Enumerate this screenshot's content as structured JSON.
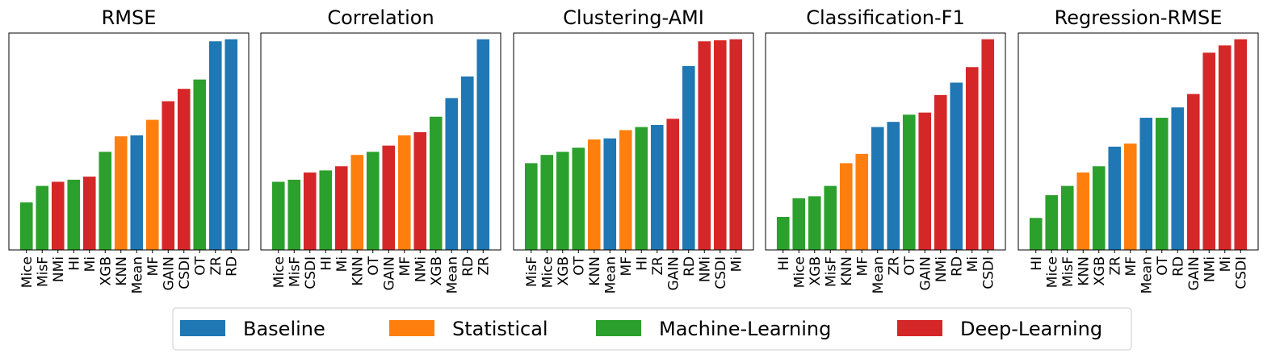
{
  "colors": {
    "Baseline": "#1f77b4",
    "Statistical": "#ff7f0e",
    "Machine-Learning": "#2ca02c",
    "Deep-Learning": "#d62728"
  },
  "legend": {
    "items": [
      "Baseline",
      "Statistical",
      "Machine-Learning",
      "Deep-Learning"
    ]
  },
  "chart_data": [
    {
      "type": "bar",
      "title": "RMSE",
      "categories": [
        "Mice",
        "MisF",
        "NMi",
        "HI",
        "Mi",
        "XGB",
        "KNN",
        "Mean",
        "MF",
        "GAIN",
        "CSDI",
        "OT",
        "ZR",
        "RD"
      ],
      "groups": [
        "Machine-Learning",
        "Machine-Learning",
        "Deep-Learning",
        "Machine-Learning",
        "Deep-Learning",
        "Machine-Learning",
        "Statistical",
        "Baseline",
        "Statistical",
        "Deep-Learning",
        "Deep-Learning",
        "Machine-Learning",
        "Baseline",
        "Baseline"
      ],
      "values": [
        0.23,
        0.31,
        0.33,
        0.34,
        0.355,
        0.475,
        0.55,
        0.555,
        0.63,
        0.72,
        0.78,
        0.825,
        1.01,
        1.02
      ],
      "ylim": [
        0,
        1.05
      ]
    },
    {
      "type": "bar",
      "title": "Correlation",
      "categories": [
        "Mice",
        "MisF",
        "CSDI",
        "HI",
        "Mi",
        "KNN",
        "OT",
        "GAIN",
        "MF",
        "NMi",
        "XGB",
        "Mean",
        "RD",
        "ZR"
      ],
      "groups": [
        "Machine-Learning",
        "Machine-Learning",
        "Deep-Learning",
        "Machine-Learning",
        "Deep-Learning",
        "Statistical",
        "Machine-Learning",
        "Deep-Learning",
        "Statistical",
        "Deep-Learning",
        "Machine-Learning",
        "Baseline",
        "Baseline",
        "Baseline"
      ],
      "values": [
        0.33,
        0.34,
        0.375,
        0.385,
        0.405,
        0.46,
        0.475,
        0.505,
        0.555,
        0.57,
        0.645,
        0.735,
        0.84,
        1.02
      ],
      "ylim": [
        0,
        1.05
      ]
    },
    {
      "type": "bar",
      "title": "Clustering-AMI",
      "categories": [
        "MisF",
        "Mice",
        "XGB",
        "OT",
        "KNN",
        "Mean",
        "MF",
        "HI",
        "ZR",
        "GAIN",
        "RD",
        "NMi",
        "CSDI",
        "Mi"
      ],
      "groups": [
        "Machine-Learning",
        "Machine-Learning",
        "Machine-Learning",
        "Machine-Learning",
        "Statistical",
        "Baseline",
        "Statistical",
        "Machine-Learning",
        "Baseline",
        "Deep-Learning",
        "Baseline",
        "Deep-Learning",
        "Deep-Learning",
        "Deep-Learning"
      ],
      "values": [
        0.42,
        0.46,
        0.475,
        0.495,
        0.535,
        0.54,
        0.58,
        0.595,
        0.605,
        0.635,
        0.89,
        1.01,
        1.015,
        1.02
      ],
      "ylim": [
        0,
        1.05
      ]
    },
    {
      "type": "bar",
      "title": "Classification-F1",
      "categories": [
        "HI",
        "Mice",
        "XGB",
        "MisF",
        "KNN",
        "MF",
        "Mean",
        "ZR",
        "OT",
        "GAIN",
        "NMi",
        "RD",
        "Mi",
        "CSDI"
      ],
      "groups": [
        "Machine-Learning",
        "Machine-Learning",
        "Machine-Learning",
        "Machine-Learning",
        "Statistical",
        "Statistical",
        "Baseline",
        "Baseline",
        "Machine-Learning",
        "Deep-Learning",
        "Deep-Learning",
        "Baseline",
        "Deep-Learning",
        "Deep-Learning"
      ],
      "values": [
        0.16,
        0.25,
        0.26,
        0.31,
        0.42,
        0.465,
        0.595,
        0.62,
        0.655,
        0.665,
        0.75,
        0.81,
        0.885,
        1.02
      ],
      "ylim": [
        0,
        1.05
      ]
    },
    {
      "type": "bar",
      "title": "Regression-RMSE",
      "categories": [
        "HI",
        "Mice",
        "MisF",
        "KNN",
        "XGB",
        "ZR",
        "MF",
        "Mean",
        "OT",
        "RD",
        "GAIN",
        "NMi",
        "Mi",
        "CSDI"
      ],
      "groups": [
        "Machine-Learning",
        "Machine-Learning",
        "Machine-Learning",
        "Statistical",
        "Machine-Learning",
        "Baseline",
        "Statistical",
        "Baseline",
        "Machine-Learning",
        "Baseline",
        "Deep-Learning",
        "Deep-Learning",
        "Deep-Learning",
        "Deep-Learning"
      ],
      "values": [
        0.155,
        0.265,
        0.31,
        0.375,
        0.405,
        0.5,
        0.515,
        0.64,
        0.64,
        0.69,
        0.755,
        0.955,
        0.99,
        1.02
      ],
      "ylim": [
        0,
        1.05
      ]
    }
  ]
}
